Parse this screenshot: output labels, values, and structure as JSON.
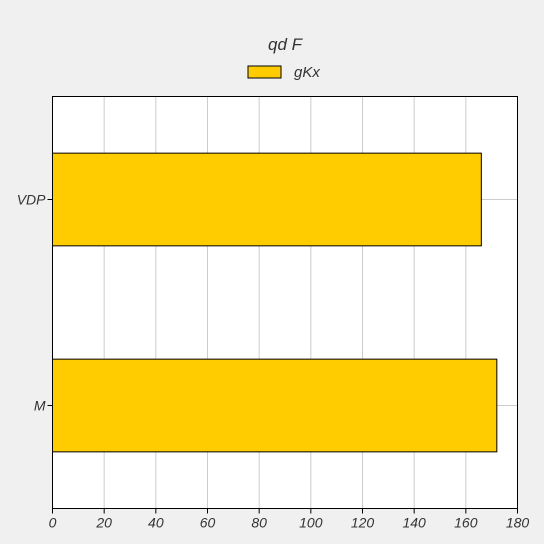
{
  "chart_data": {
    "type": "bar",
    "orientation": "horizontal",
    "title": "qd F",
    "categories": [
      "VDP",
      "M"
    ],
    "series": [
      {
        "name": "gKx",
        "values": [
          166,
          172
        ],
        "color": "#ffcc00"
      }
    ],
    "xlim": [
      0,
      180
    ],
    "x_ticks": [
      0,
      20,
      40,
      60,
      80,
      100,
      120,
      140,
      160,
      180
    ],
    "grid": true,
    "legend_position": "top-center",
    "colors": {
      "background": "#f0f0f0",
      "plot_background": "#ffffff",
      "grid": "#cccccc",
      "bar_border": "#000000"
    }
  }
}
